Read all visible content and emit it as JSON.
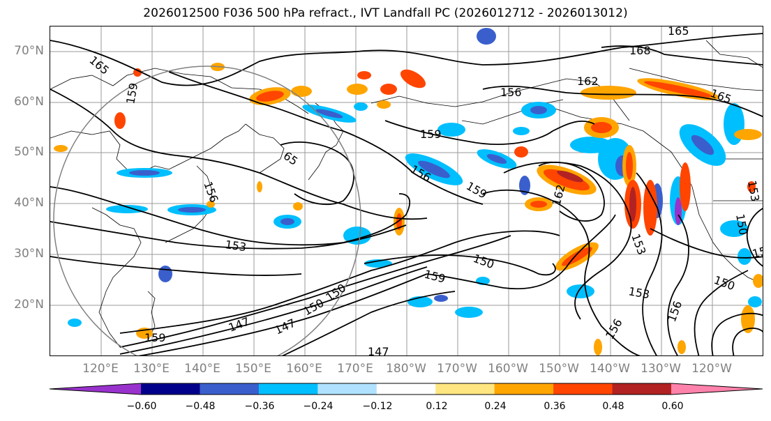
{
  "title": "2026012500 F036 500 hPa refract., IVT Landfall PC (2026012712 - 2026013012)",
  "lat_labels": [
    "70°N",
    "60°N",
    "50°N",
    "40°N",
    "30°N",
    "20°N"
  ],
  "lon_labels": [
    "120°E",
    "130°E",
    "140°E",
    "150°E",
    "160°E",
    "170°E",
    "180°W",
    "170°W",
    "160°W",
    "150°W",
    "140°W",
    "130°W",
    "120°W"
  ],
  "colorbar": {
    "tick_labels": [
      "−0.60",
      "−0.48",
      "−0.36",
      "−0.24",
      "−0.12",
      "0.12",
      "0.24",
      "0.36",
      "0.48",
      "0.60"
    ],
    "colors": [
      "#9932cc",
      "#00008b",
      "#3a5fcd",
      "#00bfff",
      "#b0e2ff",
      "#ffffff",
      "#ffe680",
      "#ffa500",
      "#ff4500",
      "#b22222",
      "#ff82ab"
    ]
  },
  "contour_labels": [
    "165",
    "168",
    "162",
    "156",
    "159",
    "156",
    "159",
    "165",
    "65",
    "153",
    "159",
    "150",
    "153",
    "150",
    "147",
    "150",
    "150",
    "147",
    "159",
    "162",
    "153",
    "153",
    "156",
    "156",
    "150",
    "159",
    "156",
    "165",
    "153",
    "147"
  ],
  "colors": {
    "axis_text": "#808080",
    "contour": "#000000",
    "grid": "#888888",
    "circle": "#808080"
  }
}
